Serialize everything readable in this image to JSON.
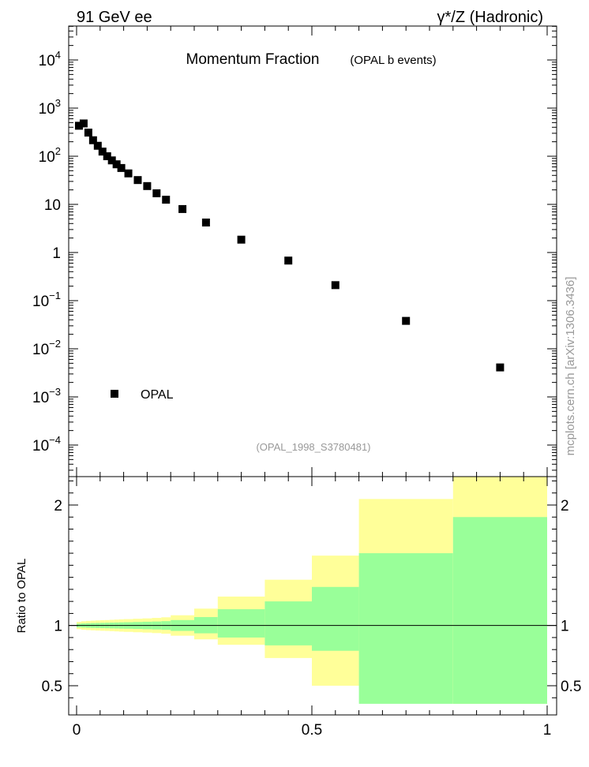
{
  "header": {
    "left": "91 GeV ee",
    "right": "γ*/Z (Hadronic)"
  },
  "side_label": "mcplots.cern.ch [arXiv:1306.3436]",
  "chart_data": [
    {
      "type": "scatter",
      "title": "Momentum Fraction",
      "subtitle": "(OPAL b events)",
      "annotation": "(OPAL_1998_S3780481)",
      "xlim": [
        0,
        1
      ],
      "ylim": [
        3e-05,
        50000
      ],
      "yscale": "log",
      "y_tick_labels": [
        {
          "value": 0.0001,
          "base": "10",
          "exp": "−4"
        },
        {
          "value": 0.001,
          "base": "10",
          "exp": "−3"
        },
        {
          "value": 0.01,
          "base": "10",
          "exp": "−2"
        },
        {
          "value": 0.1,
          "base": "10",
          "exp": "−1"
        },
        {
          "value": 1,
          "base": "1",
          "exp": ""
        },
        {
          "value": 10,
          "base": "10",
          "exp": ""
        },
        {
          "value": 100,
          "base": "10",
          "exp": "2"
        },
        {
          "value": 1000,
          "base": "10",
          "exp": "3"
        },
        {
          "value": 10000,
          "base": "10",
          "exp": "4"
        }
      ],
      "legend": {
        "placement": "bottom-left",
        "entries": [
          "OPAL"
        ]
      },
      "series": [
        {
          "name": "OPAL",
          "points": [
            {
              "x": 0.005,
              "y": 430
            },
            {
              "x": 0.015,
              "y": 480
            },
            {
              "x": 0.025,
              "y": 310
            },
            {
              "x": 0.035,
              "y": 215
            },
            {
              "x": 0.045,
              "y": 165
            },
            {
              "x": 0.055,
              "y": 125
            },
            {
              "x": 0.065,
              "y": 100
            },
            {
              "x": 0.075,
              "y": 82
            },
            {
              "x": 0.085,
              "y": 68
            },
            {
              "x": 0.095,
              "y": 57
            },
            {
              "x": 0.11,
              "y": 44
            },
            {
              "x": 0.13,
              "y": 32
            },
            {
              "x": 0.15,
              "y": 24
            },
            {
              "x": 0.17,
              "y": 17
            },
            {
              "x": 0.19,
              "y": 12.5
            },
            {
              "x": 0.225,
              "y": 8
            },
            {
              "x": 0.275,
              "y": 4.2
            },
            {
              "x": 0.35,
              "y": 1.85
            },
            {
              "x": 0.45,
              "y": 0.68
            },
            {
              "x": 0.55,
              "y": 0.21
            },
            {
              "x": 0.7,
              "y": 0.038
            },
            {
              "x": 0.9,
              "y": 0.0041
            }
          ]
        }
      ]
    },
    {
      "type": "area",
      "ylabel": "Ratio to OPAL",
      "xlim": [
        0,
        1
      ],
      "ylim": [
        0.35,
        2.3
      ],
      "x_tick_labels": [
        "0",
        "0.5",
        "1"
      ],
      "x_ticks": [
        0,
        0.5,
        1
      ],
      "y_tick_labels": [
        "0.5",
        "1",
        "2"
      ],
      "y_ticks": [
        0.5,
        1,
        2
      ],
      "reference_line": 1,
      "colors": {
        "outer_band": "#ffff99",
        "inner_band": "#99ff99",
        "line": "#000000"
      },
      "bins": [
        {
          "x0": 0.0,
          "x1": 0.01,
          "outer": [
            0.97,
            1.03
          ],
          "inner": [
            0.985,
            1.015
          ]
        },
        {
          "x0": 0.01,
          "x1": 0.02,
          "outer": [
            0.965,
            1.035
          ],
          "inner": [
            0.983,
            1.017
          ]
        },
        {
          "x0": 0.02,
          "x1": 0.03,
          "outer": [
            0.962,
            1.038
          ],
          "inner": [
            0.981,
            1.019
          ]
        },
        {
          "x0": 0.03,
          "x1": 0.04,
          "outer": [
            0.96,
            1.04
          ],
          "inner": [
            0.98,
            1.02
          ]
        },
        {
          "x0": 0.04,
          "x1": 0.05,
          "outer": [
            0.958,
            1.042
          ],
          "inner": [
            0.979,
            1.021
          ]
        },
        {
          "x0": 0.05,
          "x1": 0.06,
          "outer": [
            0.956,
            1.044
          ],
          "inner": [
            0.978,
            1.022
          ]
        },
        {
          "x0": 0.06,
          "x1": 0.07,
          "outer": [
            0.955,
            1.045
          ],
          "inner": [
            0.977,
            1.023
          ]
        },
        {
          "x0": 0.07,
          "x1": 0.08,
          "outer": [
            0.953,
            1.047
          ],
          "inner": [
            0.976,
            1.024
          ]
        },
        {
          "x0": 0.08,
          "x1": 0.09,
          "outer": [
            0.951,
            1.049
          ],
          "inner": [
            0.975,
            1.025
          ]
        },
        {
          "x0": 0.09,
          "x1": 0.1,
          "outer": [
            0.949,
            1.051
          ],
          "inner": [
            0.974,
            1.026
          ]
        },
        {
          "x0": 0.1,
          "x1": 0.12,
          "outer": [
            0.947,
            1.053
          ],
          "inner": [
            0.973,
            1.027
          ]
        },
        {
          "x0": 0.12,
          "x1": 0.14,
          "outer": [
            0.944,
            1.056
          ],
          "inner": [
            0.971,
            1.029
          ]
        },
        {
          "x0": 0.14,
          "x1": 0.16,
          "outer": [
            0.941,
            1.059
          ],
          "inner": [
            0.969,
            1.031
          ]
        },
        {
          "x0": 0.16,
          "x1": 0.18,
          "outer": [
            0.937,
            1.063
          ],
          "inner": [
            0.967,
            1.033
          ]
        },
        {
          "x0": 0.18,
          "x1": 0.2,
          "outer": [
            0.932,
            1.068
          ],
          "inner": [
            0.964,
            1.036
          ]
        },
        {
          "x0": 0.2,
          "x1": 0.25,
          "outer": [
            0.915,
            1.085
          ],
          "inner": [
            0.955,
            1.045
          ]
        },
        {
          "x0": 0.25,
          "x1": 0.3,
          "outer": [
            0.885,
            1.14
          ],
          "inner": [
            0.935,
            1.07
          ]
        },
        {
          "x0": 0.3,
          "x1": 0.4,
          "outer": [
            0.84,
            1.24
          ],
          "inner": [
            0.9,
            1.135
          ]
        },
        {
          "x0": 0.4,
          "x1": 0.5,
          "outer": [
            0.73,
            1.38
          ],
          "inner": [
            0.835,
            1.2
          ]
        },
        {
          "x0": 0.5,
          "x1": 0.6,
          "outer": [
            0.5,
            1.58
          ],
          "inner": [
            0.79,
            1.32
          ]
        },
        {
          "x0": 0.6,
          "x1": 0.8,
          "outer": [
            0.465,
            2.05
          ],
          "inner": [
            0.35,
            1.6
          ]
        },
        {
          "x0": 0.8,
          "x1": 1.0,
          "outer": [
            0.35,
            2.3
          ],
          "inner": [
            0.35,
            1.9
          ]
        }
      ]
    }
  ]
}
